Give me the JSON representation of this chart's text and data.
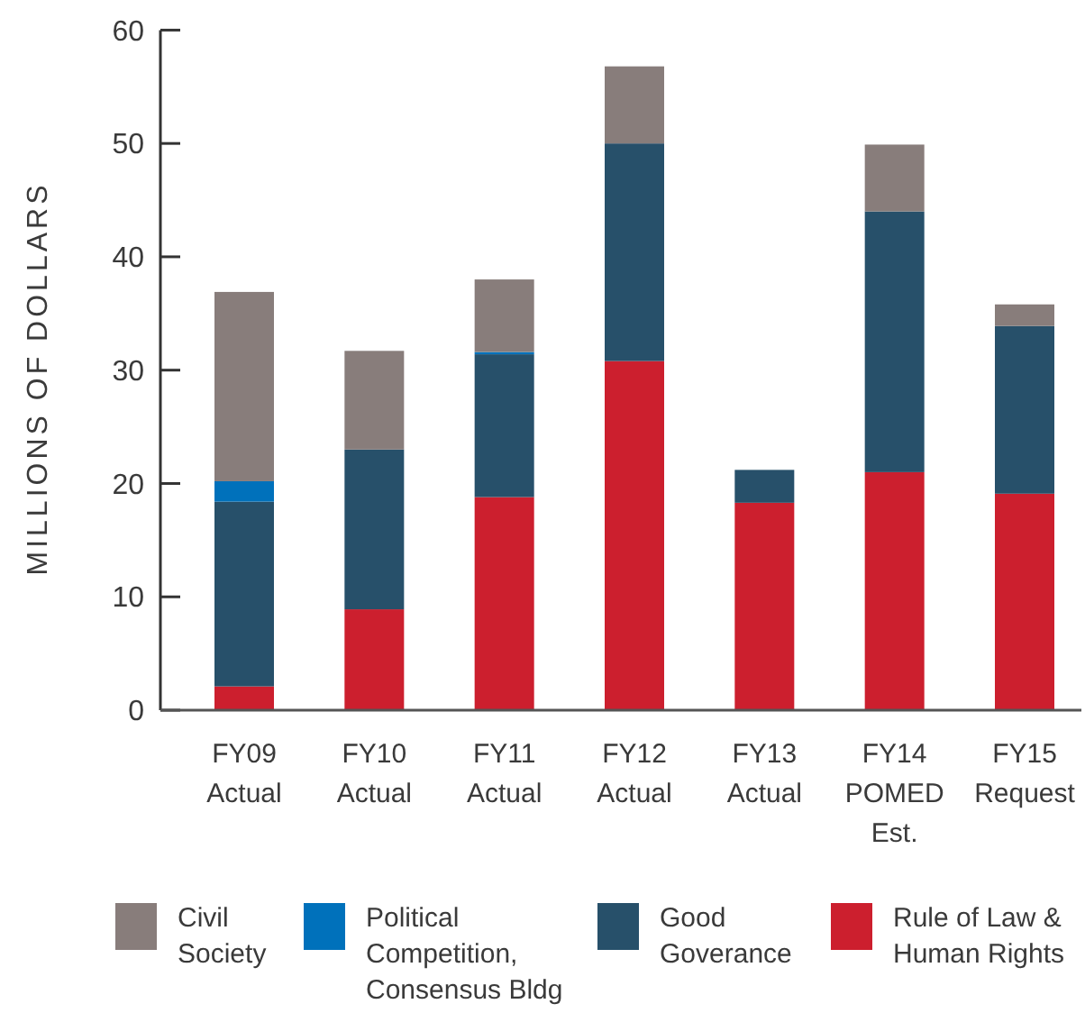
{
  "chart_data": {
    "type": "bar",
    "stacked": true,
    "ylabel": "MILLIONS OF DOLLARS",
    "categories": [
      "FY09 Actual",
      "FY10 Actual",
      "FY11 Actual",
      "FY12 Actual",
      "FY13 Actual",
      "FY14 POMED Est.",
      "FY15 Request"
    ],
    "series": [
      {
        "name": "Rule of Law & Human Rights",
        "color": "#cc1f2e",
        "values": [
          2.1,
          8.9,
          18.8,
          30.8,
          18.3,
          21.0,
          19.1
        ]
      },
      {
        "name": "Good Goverance",
        "color": "#27506a",
        "values": [
          16.3,
          14.1,
          12.6,
          19.2,
          2.9,
          23.0,
          14.8
        ]
      },
      {
        "name": "Political Competition, Consensus Bldg",
        "color": "#0071bb",
        "values": [
          1.8,
          null,
          0.2,
          null,
          null,
          null,
          null
        ]
      },
      {
        "name": "Civil Society",
        "color": "#887d7b",
        "values": [
          16.7,
          8.7,
          6.4,
          6.8,
          null,
          5.9,
          1.9
        ]
      }
    ],
    "ylim": [
      0,
      60
    ],
    "yticks": [
      0,
      10,
      20,
      30,
      40,
      50,
      60
    ],
    "legend": "bottom"
  }
}
